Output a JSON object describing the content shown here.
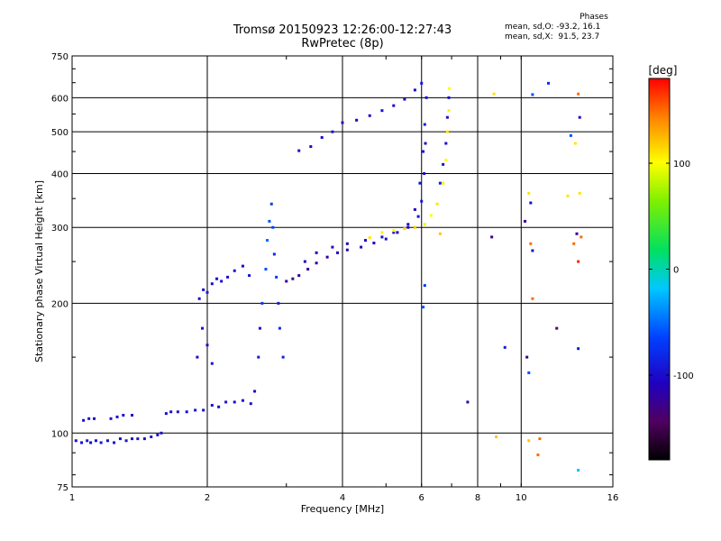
{
  "title": "Tromsø 20150923 12:26:00-12:27:43",
  "subtitle": "RwPretec (8p)",
  "phases": {
    "heading": "Phases",
    "row_o": "mean, sd,O: -93.2, 16.1",
    "row_x": "mean, sd,X:  91.5, 23.7"
  },
  "chart_data": {
    "type": "scatter",
    "title": "Tromsø 20150923 12:26:00-12:27:43",
    "subtitle": "RwPretec (8p)",
    "xlabel": "Frequency [MHz]",
    "ylabel": "Stationary phase Virtual Height [km]",
    "xscale": "log",
    "yscale": "log",
    "xlim": [
      1,
      16
    ],
    "ylim": [
      75,
      750
    ],
    "xticks": [
      1,
      2,
      4,
      6,
      8,
      10,
      16
    ],
    "yticks": [
      75,
      100,
      200,
      300,
      400,
      500,
      600,
      750
    ],
    "grid": true,
    "colorbar": {
      "label": "[deg]",
      "min": -180,
      "max": 180,
      "ticks": [
        100,
        0,
        -100
      ],
      "colormap": "rainbow (black-purple-blue-cyan-green-yellow-red)"
    },
    "series": [
      {
        "name": "",
        "points": [
          [
            1.02,
            96,
            -95
          ],
          [
            1.05,
            95,
            -100
          ],
          [
            1.08,
            96,
            -90
          ],
          [
            1.1,
            95,
            -105
          ],
          [
            1.13,
            96,
            -98
          ],
          [
            1.16,
            95,
            -92
          ],
          [
            1.2,
            96,
            -100
          ],
          [
            1.24,
            95,
            -96
          ],
          [
            1.28,
            97,
            -100
          ],
          [
            1.32,
            96,
            -94
          ],
          [
            1.36,
            97,
            -102
          ],
          [
            1.4,
            97,
            -96
          ],
          [
            1.45,
            97,
            -100
          ],
          [
            1.5,
            98,
            -95
          ],
          [
            1.55,
            99,
            -100
          ],
          [
            1.58,
            100,
            -98
          ]
        ]
      },
      {
        "name": "",
        "points": [
          [
            1.06,
            107,
            -100
          ],
          [
            1.09,
            108,
            -95
          ],
          [
            1.12,
            108,
            -105
          ],
          [
            1.22,
            108,
            -98
          ],
          [
            1.26,
            109,
            -100
          ],
          [
            1.3,
            110,
            -96
          ],
          [
            1.36,
            110,
            -100
          ],
          [
            1.62,
            111,
            -98
          ],
          [
            1.66,
            112,
            -100
          ],
          [
            1.72,
            112,
            -96
          ],
          [
            1.8,
            112,
            -100
          ],
          [
            1.88,
            113,
            -94
          ],
          [
            1.96,
            113,
            -100
          ],
          [
            2.05,
            116,
            -96
          ],
          [
            2.12,
            115,
            -100
          ],
          [
            2.2,
            118,
            -98
          ],
          [
            2.3,
            118,
            -100
          ],
          [
            2.4,
            119,
            -96
          ],
          [
            2.5,
            117,
            -100
          ]
        ]
      },
      {
        "name": "",
        "points": [
          [
            1.92,
            205,
            -100
          ],
          [
            1.96,
            215,
            -95
          ],
          [
            2.0,
            212,
            -90
          ],
          [
            2.05,
            222,
            -100
          ],
          [
            2.1,
            228,
            -105
          ],
          [
            2.15,
            225,
            -98
          ],
          [
            2.22,
            230,
            -100
          ],
          [
            2.3,
            238,
            -96
          ],
          [
            2.4,
            244,
            -100
          ],
          [
            2.48,
            232,
            -95
          ],
          [
            1.9,
            150,
            -100
          ],
          [
            1.95,
            175,
            -98
          ],
          [
            2.0,
            160,
            -100
          ],
          [
            2.05,
            145,
            -96
          ]
        ]
      },
      {
        "name": "",
        "points": [
          [
            2.55,
            125,
            -100
          ],
          [
            2.6,
            150,
            -90
          ],
          [
            2.62,
            175,
            -100
          ],
          [
            2.65,
            200,
            -70
          ],
          [
            2.7,
            240,
            -60
          ],
          [
            2.72,
            280,
            -50
          ],
          [
            2.75,
            310,
            -60
          ],
          [
            2.78,
            340,
            -70
          ],
          [
            2.8,
            300,
            -65
          ],
          [
            2.82,
            260,
            -80
          ],
          [
            2.85,
            230,
            -70
          ],
          [
            2.88,
            200,
            -90
          ],
          [
            2.9,
            175,
            -80
          ],
          [
            2.95,
            150,
            -85
          ],
          [
            3.0,
            225,
            -120
          ],
          [
            3.1,
            228,
            -130
          ],
          [
            3.2,
            232,
            -120
          ],
          [
            3.35,
            240,
            -125
          ],
          [
            3.5,
            248,
            -115
          ],
          [
            3.7,
            256,
            -120
          ],
          [
            3.9,
            262,
            -110
          ],
          [
            4.1,
            266,
            -115
          ],
          [
            4.4,
            270,
            -110
          ],
          [
            4.7,
            276,
            -105
          ],
          [
            5.0,
            282,
            -100
          ],
          [
            5.3,
            292,
            -105
          ],
          [
            5.6,
            305,
            -110
          ],
          [
            5.8,
            330,
            -100
          ],
          [
            5.95,
            380,
            -95
          ],
          [
            6.05,
            450,
            -100
          ],
          [
            6.1,
            520,
            -90
          ]
        ]
      },
      {
        "name": "",
        "points": [
          [
            3.3,
            250,
            -110
          ],
          [
            3.5,
            262,
            -105
          ],
          [
            3.8,
            270,
            -100
          ],
          [
            4.1,
            275,
            -110
          ],
          [
            4.5,
            280,
            -100
          ],
          [
            4.9,
            285,
            -95
          ],
          [
            5.2,
            292,
            -100
          ],
          [
            5.6,
            300,
            -105
          ],
          [
            5.9,
            318,
            -100
          ],
          [
            6.0,
            345,
            -95
          ],
          [
            6.08,
            400,
            -100
          ],
          [
            6.12,
            470,
            -100
          ],
          [
            6.15,
            600,
            -95
          ]
        ]
      },
      {
        "name": "",
        "points": [
          [
            3.2,
            452,
            -100
          ],
          [
            3.4,
            462,
            -105
          ],
          [
            3.6,
            485,
            -100
          ],
          [
            3.8,
            500,
            -95
          ],
          [
            4.0,
            525,
            -100
          ],
          [
            4.3,
            532,
            -105
          ],
          [
            4.6,
            545,
            -100
          ],
          [
            4.9,
            560,
            -95
          ],
          [
            5.2,
            575,
            -100
          ],
          [
            5.5,
            595,
            -105
          ],
          [
            5.8,
            625,
            -100
          ],
          [
            6.0,
            648,
            -95
          ]
        ]
      },
      {
        "name": "",
        "points": [
          [
            4.6,
            284,
            110
          ],
          [
            4.9,
            292,
            105
          ],
          [
            5.2,
            295,
            100
          ],
          [
            5.5,
            298,
            115
          ],
          [
            5.8,
            300,
            120
          ],
          [
            6.1,
            305,
            95
          ],
          [
            6.3,
            320,
            100
          ],
          [
            6.5,
            340,
            110
          ],
          [
            6.7,
            380,
            105
          ],
          [
            6.8,
            430,
            100
          ],
          [
            6.85,
            500,
            110
          ],
          [
            6.9,
            560,
            105
          ],
          [
            6.92,
            630,
            100
          ],
          [
            6.6,
            290,
            120
          ]
        ]
      },
      {
        "name": "",
        "points": [
          [
            6.6,
            380,
            -90
          ],
          [
            6.7,
            420,
            -95
          ],
          [
            6.8,
            470,
            -100
          ],
          [
            6.85,
            540,
            -95
          ],
          [
            6.9,
            600,
            -100
          ]
        ]
      },
      {
        "name": "",
        "points": [
          [
            8.7,
            612,
            110
          ],
          [
            10.6,
            610,
            -60
          ],
          [
            11.5,
            648,
            -80
          ],
          [
            13.4,
            612,
            150
          ],
          [
            13.5,
            540,
            -100
          ],
          [
            12.9,
            490,
            -60
          ],
          [
            13.2,
            470,
            110
          ],
          [
            10.4,
            360,
            110
          ],
          [
            10.5,
            342,
            -100
          ],
          [
            12.7,
            355,
            110
          ],
          [
            13.5,
            360,
            110
          ],
          [
            13.3,
            290,
            -120
          ],
          [
            13.6,
            285,
            150
          ],
          [
            10.2,
            310,
            -120
          ],
          [
            8.6,
            285,
            -130
          ],
          [
            10.5,
            275,
            150
          ],
          [
            10.6,
            265,
            -100
          ],
          [
            13.1,
            275,
            150
          ],
          [
            13.4,
            250,
            170
          ],
          [
            10.6,
            205,
            150
          ],
          [
            12.0,
            175,
            -140
          ],
          [
            9.2,
            158,
            -90
          ],
          [
            10.3,
            150,
            -130
          ],
          [
            10.4,
            138,
            -60
          ],
          [
            13.4,
            157,
            -90
          ],
          [
            7.6,
            118,
            -120
          ],
          [
            8.8,
            98,
            120
          ],
          [
            10.4,
            96,
            120
          ],
          [
            11.0,
            97,
            150
          ],
          [
            10.9,
            89,
            150
          ],
          [
            13.4,
            82,
            -20
          ],
          [
            6.1,
            220,
            -70
          ],
          [
            6.05,
            196,
            -60
          ]
        ]
      }
    ]
  }
}
